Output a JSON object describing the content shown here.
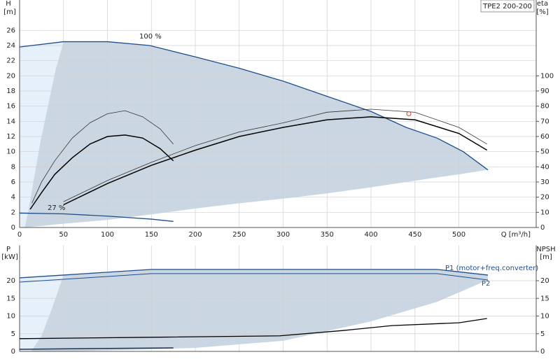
{
  "chart_data": [
    {
      "type": "line",
      "title": "TPE2 200-200",
      "ylabel": "H",
      "yunit": "[m]",
      "y2label": "eta",
      "y2unit": "[%]",
      "xlabel": "Q [m³/h]",
      "annotations": [
        "100 %",
        "27 %"
      ],
      "xlim": [
        0,
        588
      ],
      "xticks": [
        0,
        50,
        100,
        150,
        200,
        250,
        300,
        350,
        400,
        450,
        500
      ],
      "xtick_labels": true,
      "ylim": [
        0,
        30
      ],
      "yticks": [
        0,
        2,
        4,
        6,
        8,
        10,
        12,
        14,
        16,
        18,
        20,
        22,
        24,
        26
      ],
      "y2lim": [
        0,
        150
      ],
      "y2ticks": [
        0,
        10,
        20,
        30,
        40,
        50,
        60,
        70,
        80,
        90,
        100
      ],
      "grid": true,
      "areas": [
        {
          "color": "#e6f0fa",
          "x": [
            0,
            6,
            10,
            24,
            41,
            50
          ],
          "upper": [
            23.8,
            23.9,
            24,
            24.2,
            24.4,
            24.5
          ],
          "lower": [
            0,
            0,
            2.3,
            11.5,
            20.8,
            24.5
          ]
        },
        {
          "color": "#cad7e3",
          "x": [
            6,
            10,
            24,
            41,
            50,
            100,
            148,
            200,
            250,
            300,
            350,
            400,
            440,
            475,
            505,
            533
          ],
          "upper": [
            0,
            2.3,
            11.5,
            20.8,
            24.5,
            24.5,
            24,
            22.5,
            21,
            19.3,
            17.3,
            15.3,
            13.2,
            11.8,
            10,
            7.6
          ],
          "lower": [
            0,
            0.05,
            0.2,
            0.4,
            0.5,
            1,
            1.7,
            2.5,
            3.2,
            3.8,
            4.5,
            5.3,
            6,
            6.6,
            7.1,
            7.6
          ]
        }
      ],
      "series": [
        {
          "color": "#1f4e8c",
          "width": 1.3,
          "x": [
            0,
            50,
            100,
            148,
            200,
            250,
            300,
            350,
            400,
            440,
            475,
            505,
            533
          ],
          "values": [
            23.8,
            24.5,
            24.5,
            24,
            22.5,
            21,
            19.3,
            17.3,
            15.3,
            13.2,
            11.8,
            10,
            7.6
          ]
        },
        {
          "color": "#1f4e8c",
          "width": 1.3,
          "x": [
            0,
            50,
            100,
            150,
            175
          ],
          "values": [
            1.9,
            1.8,
            1.5,
            1.1,
            0.8
          ]
        },
        {
          "color": "#000000",
          "width": 1.5,
          "axis": "y2",
          "x": [
            12,
            25,
            40,
            60,
            80,
            100,
            120,
            140,
            160,
            175
          ],
          "values": [
            12,
            23,
            35,
            46,
            55,
            60,
            61,
            59,
            52,
            44
          ]
        },
        {
          "color": "#333333",
          "width": 0.8,
          "axis": "y2",
          "x": [
            14,
            25,
            40,
            60,
            80,
            100,
            120,
            140,
            160,
            175
          ],
          "values": [
            16,
            30,
            44,
            59,
            69,
            75,
            77,
            73,
            65,
            55
          ]
        },
        {
          "color": "#000000",
          "width": 1.5,
          "axis": "y2",
          "x": [
            50,
            100,
            150,
            200,
            250,
            300,
            350,
            400,
            450,
            500,
            532
          ],
          "values": [
            15,
            29,
            41,
            51,
            60,
            66,
            71,
            73,
            71,
            62,
            51
          ]
        },
        {
          "color": "#333333",
          "width": 0.8,
          "axis": "y2",
          "x": [
            50,
            100,
            150,
            200,
            250,
            300,
            350,
            400,
            450,
            500,
            532
          ],
          "values": [
            17,
            31,
            43,
            54,
            63,
            69,
            76,
            78,
            76,
            66,
            55
          ]
        }
      ],
      "points": [
        {
          "x": 443,
          "y": 15,
          "color": "#e03c31"
        }
      ]
    },
    {
      "type": "line",
      "ylabel": "P",
      "yunit": "[kW]",
      "y2label": "NPSH",
      "y2unit": "[m]",
      "xlim": [
        0,
        588
      ],
      "xticks": [
        0,
        50,
        100,
        150,
        200,
        250,
        300,
        350,
        400,
        450,
        500
      ],
      "xtick_labels": false,
      "ylim": [
        0,
        30
      ],
      "yticks": [
        0,
        5,
        10,
        15,
        20
      ],
      "y2lim": [
        0,
        30
      ],
      "y2ticks": [
        0,
        5,
        10,
        15,
        20
      ],
      "grid": true,
      "areas": [
        {
          "color": "#e6f0fa",
          "x": [
            0,
            13,
            25,
            37,
            50
          ],
          "upper": [
            20.8,
            21,
            21.2,
            21.4,
            21.6
          ],
          "lower": [
            0,
            0,
            4.4,
            12.3,
            21.6
          ]
        },
        {
          "color": "#cad7e3",
          "x": [
            13,
            25,
            37,
            50,
            100,
            150,
            200,
            300,
            400,
            475,
            533
          ],
          "upper": [
            0,
            4.4,
            12.3,
            21.6,
            22.4,
            23.2,
            23.2,
            23.2,
            23.2,
            23.2,
            21.6
          ],
          "lower": [
            0,
            0,
            0,
            0,
            0.3,
            0.6,
            1,
            3,
            8.5,
            14,
            20.2
          ]
        }
      ],
      "series": [
        {
          "name": "P1 (motor+freq.converter)",
          "color": "#1f4e8c",
          "width": 1.3,
          "x": [
            0,
            50,
            100,
            150,
            200,
            300,
            400,
            475,
            533
          ],
          "values": [
            20.8,
            21.6,
            22.4,
            23.2,
            23.2,
            23.2,
            23.2,
            23.2,
            21.6
          ]
        },
        {
          "name": "P2",
          "color": "#1f4e8c",
          "width": 1,
          "x": [
            0,
            50,
            100,
            150,
            200,
            300,
            400,
            475,
            533
          ],
          "values": [
            19.6,
            20.4,
            21.2,
            22,
            22,
            22,
            22,
            22,
            20.2
          ]
        },
        {
          "color": "#000000",
          "width": 1.3,
          "axis": "y2",
          "x": [
            0,
            150,
            296,
            368,
            424,
            500,
            532
          ],
          "values": [
            3.6,
            4,
            4.4,
            5.9,
            7.3,
            8.1,
            9.3
          ]
        },
        {
          "color": "#1f3050",
          "width": 1.5,
          "x": [
            0,
            175
          ],
          "values": [
            0.6,
            1
          ]
        }
      ]
    }
  ]
}
